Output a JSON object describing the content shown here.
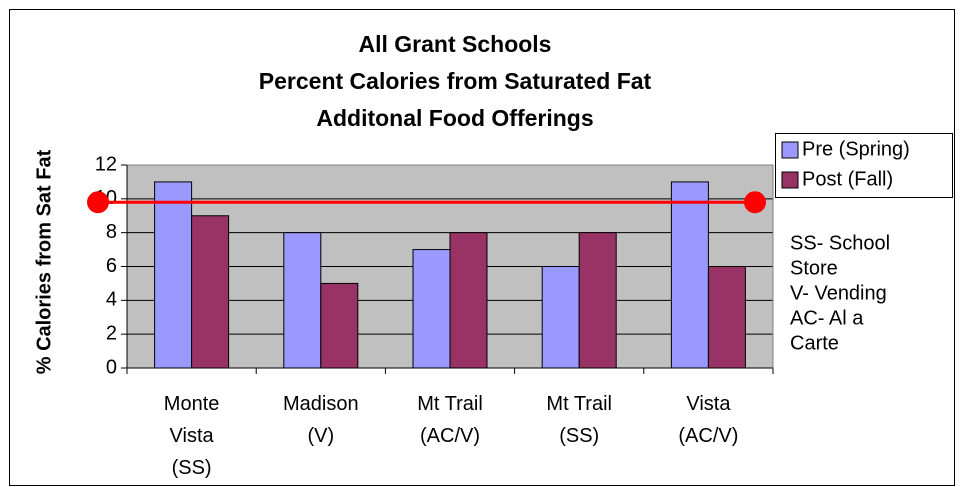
{
  "chart_data": {
    "type": "bar",
    "title": [
      "All Grant Schools",
      "Percent Calories from Saturated Fat",
      "Additonal Food Offerings"
    ],
    "y_label": "% Calories from Sat Fat",
    "categories": [
      "Monte\nVista\n(SS)",
      "Madison\n(V)",
      "Mt Trail\n(AC/V)",
      "Mt Trail\n(SS)",
      "Vista\n(AC/V)"
    ],
    "series": [
      {
        "name": "Pre (Spring)",
        "color": "#9999ff",
        "values": [
          11,
          8,
          7,
          6,
          11
        ]
      },
      {
        "name": "Post (Fall)",
        "color": "#993366",
        "values": [
          9,
          5,
          8,
          8,
          6
        ]
      }
    ],
    "ylim": [
      0,
      12
    ],
    "yticks": [
      0,
      2,
      4,
      6,
      8,
      10,
      12
    ],
    "grid": true,
    "plot_background": "#c0c0c0",
    "reference_line": {
      "value": 9.8,
      "color": "#ff0000"
    },
    "legend": "right",
    "note": [
      "SS- School",
      "Store",
      "V- Vending",
      "AC- Al a",
      "Carte"
    ]
  }
}
